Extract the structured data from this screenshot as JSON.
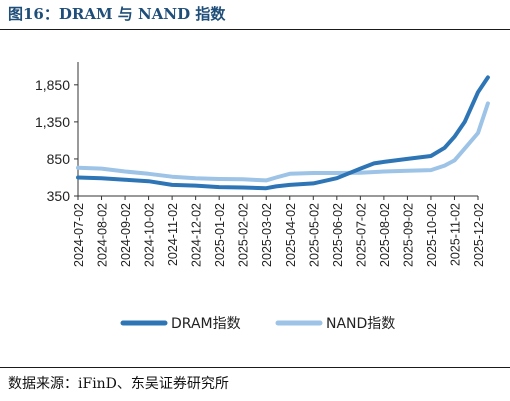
{
  "figure_title": "图16：DRAM 与 NAND 指数",
  "source_note": "数据来源：iFinD、东吴证券研究所",
  "chart_data": {
    "type": "line",
    "title": "",
    "xlabel": "",
    "ylabel": "",
    "y_ticks": [
      350,
      850,
      1350,
      1850
    ],
    "y_tick_labels": [
      "350",
      "850",
      "1,350",
      "1,850"
    ],
    "ylim": [
      350,
      2050
    ],
    "x_tick_labels": [
      "2024-07-02",
      "2024-08-02",
      "2024-09-02",
      "2024-10-02",
      "2024-11-02",
      "2024-12-02",
      "2025-01-02",
      "2025-02-02",
      "2025-03-02",
      "2025-04-02",
      "2025-05-02",
      "2025-06-02",
      "2025-07-02",
      "2025-08-02",
      "2025-09-02",
      "2025-10-02",
      "2025-11-02",
      "2025-12-02"
    ],
    "grid": false,
    "legend_position": "bottom",
    "series": [
      {
        "name": "DRAM指数",
        "color": "#2e75b6",
        "points": [
          [
            "2024-07-02",
            600
          ],
          [
            "2024-08-02",
            590
          ],
          [
            "2024-09-02",
            570
          ],
          [
            "2024-10-02",
            550
          ],
          [
            "2024-11-02",
            500
          ],
          [
            "2024-12-02",
            490
          ],
          [
            "2025-01-02",
            470
          ],
          [
            "2025-02-02",
            465
          ],
          [
            "2025-03-02",
            455
          ],
          [
            "2025-03-15",
            480
          ],
          [
            "2025-04-02",
            500
          ],
          [
            "2025-05-02",
            520
          ],
          [
            "2025-06-02",
            590
          ],
          [
            "2025-07-02",
            720
          ],
          [
            "2025-07-20",
            790
          ],
          [
            "2025-08-02",
            810
          ],
          [
            "2025-09-02",
            850
          ],
          [
            "2025-10-02",
            890
          ],
          [
            "2025-10-20",
            1000
          ],
          [
            "2025-11-02",
            1150
          ],
          [
            "2025-11-15",
            1350
          ],
          [
            "2025-12-02",
            1750
          ],
          [
            "2025-12-15",
            1950
          ]
        ]
      },
      {
        "name": "NAND指数",
        "color": "#9dc3e6",
        "points": [
          [
            "2024-07-02",
            730
          ],
          [
            "2024-08-02",
            720
          ],
          [
            "2024-09-02",
            680
          ],
          [
            "2024-10-02",
            650
          ],
          [
            "2024-11-02",
            610
          ],
          [
            "2024-12-02",
            590
          ],
          [
            "2025-01-02",
            580
          ],
          [
            "2025-02-02",
            575
          ],
          [
            "2025-03-02",
            560
          ],
          [
            "2025-03-15",
            600
          ],
          [
            "2025-04-02",
            650
          ],
          [
            "2025-05-02",
            660
          ],
          [
            "2025-06-02",
            660
          ],
          [
            "2025-07-02",
            665
          ],
          [
            "2025-08-02",
            680
          ],
          [
            "2025-09-02",
            690
          ],
          [
            "2025-10-02",
            700
          ],
          [
            "2025-10-20",
            760
          ],
          [
            "2025-11-02",
            830
          ],
          [
            "2025-11-15",
            990
          ],
          [
            "2025-12-02",
            1200
          ],
          [
            "2025-12-15",
            1600
          ]
        ]
      }
    ]
  }
}
